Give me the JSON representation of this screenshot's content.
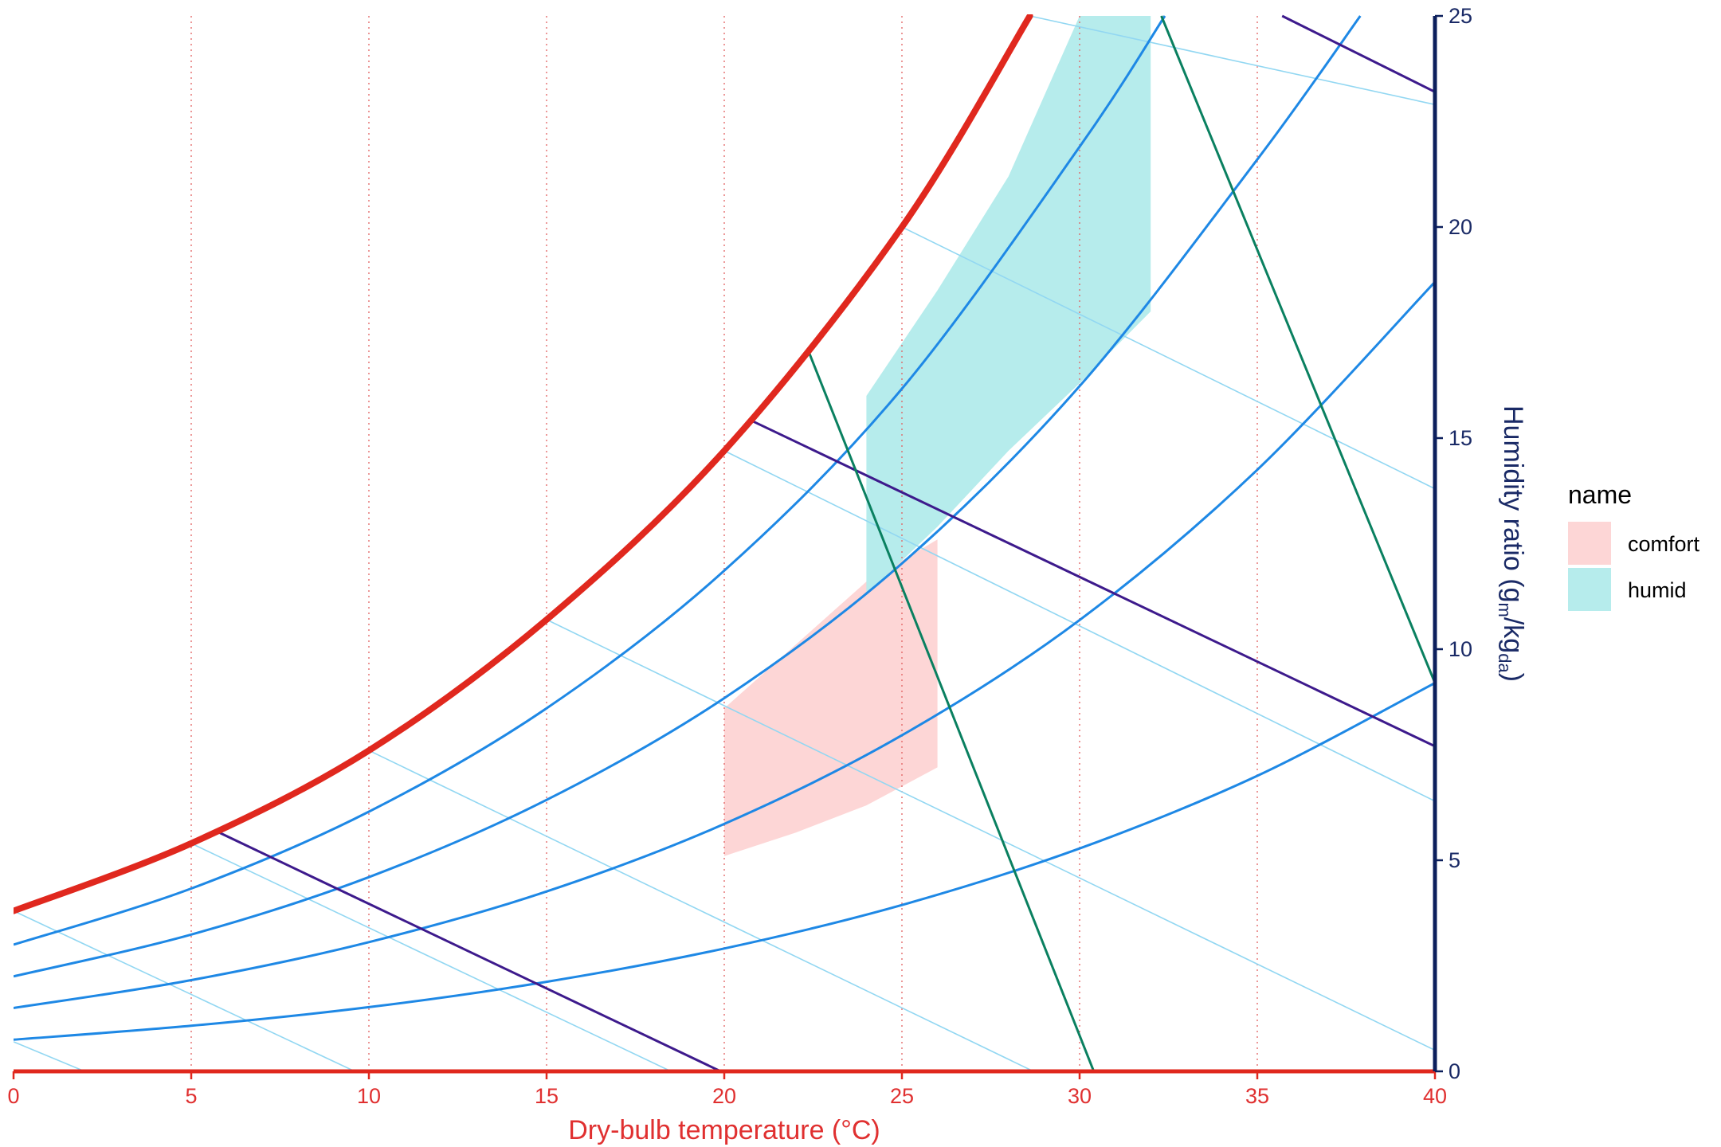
{
  "chart_data": {
    "type": "line",
    "xlabel": "Dry-bulb temperature (°C)",
    "ylabel": {
      "text_before": "Humidity ratio (g",
      "sub1": "m",
      "text_middle": "/kg",
      "sub2": "da",
      "text_after": ")"
    },
    "xlim": [
      0,
      40
    ],
    "ylim": [
      0,
      25
    ],
    "x_ticks": [
      0,
      5,
      10,
      15,
      20,
      25,
      30,
      35,
      40
    ],
    "y_ticks": [
      0,
      5,
      10,
      15,
      20,
      25
    ],
    "x_tick_labels": [
      "0",
      "5",
      "10",
      "15",
      "20",
      "25",
      "30",
      "35",
      "40"
    ],
    "y_tick_labels": [
      "0",
      "5",
      "10",
      "15",
      "20",
      "25"
    ],
    "y_axis_position": "right",
    "vertical_gridlines_at": [
      5,
      10,
      15,
      20,
      25,
      30,
      35
    ],
    "colors": {
      "saturation": "#e0281e",
      "rh": "#1e88e5",
      "wetbulb": "#92d7f2",
      "enthalpy": "#3d1a8c",
      "volume": "#0a8060",
      "comfort": "#fdd6d6",
      "humid": "#b6ecec",
      "y_axis": "#0c1f5c",
      "x_axis": "#e0281e",
      "grid": "#e26060"
    },
    "saturation_curve": {
      "x": [
        0,
        5,
        10,
        15,
        20,
        25,
        28.6
      ],
      "y": [
        3.8,
        5.4,
        7.6,
        10.7,
        14.7,
        20.0,
        25.0
      ]
    },
    "rh_curves": [
      {
        "rh": 0.2,
        "x": [
          0,
          5,
          10,
          15,
          20,
          25,
          30,
          35,
          40
        ],
        "y": [
          0.75,
          1.08,
          1.52,
          2.12,
          2.91,
          3.94,
          5.28,
          7.0,
          9.2
        ]
      },
      {
        "rh": 0.4,
        "x": [
          0,
          5,
          10,
          15,
          20,
          25,
          30,
          35,
          40
        ],
        "y": [
          1.5,
          2.16,
          3.06,
          4.26,
          5.86,
          7.96,
          10.69,
          14.25,
          18.7
        ]
      },
      {
        "rh": 0.6,
        "x": [
          0,
          5,
          10,
          15,
          20,
          25,
          30,
          35,
          37.9
        ],
        "y": [
          2.25,
          3.24,
          4.6,
          6.43,
          8.84,
          12.03,
          16.23,
          21.6,
          25.0
        ]
      },
      {
        "rh": 0.8,
        "x": [
          0,
          5,
          10,
          15,
          20,
          25,
          30,
          32.4
        ],
        "y": [
          3.0,
          4.33,
          6.15,
          8.6,
          11.86,
          16.17,
          21.9,
          25.0
        ]
      }
    ],
    "wetbulb_lines": [
      {
        "x": [
          0,
          2.0
        ],
        "y": [
          0.7,
          0
        ]
      },
      {
        "x": [
          0,
          9.6
        ],
        "y": [
          3.8,
          0
        ]
      },
      {
        "x": [
          5.0,
          18.5
        ],
        "y": [
          5.4,
          0
        ]
      },
      {
        "x": [
          10.0,
          28.7
        ],
        "y": [
          7.6,
          0
        ]
      },
      {
        "x": [
          15.0,
          40.0
        ],
        "y": [
          10.7,
          0.5
        ]
      },
      {
        "x": [
          20.0,
          40.0
        ],
        "y": [
          14.7,
          6.4
        ]
      },
      {
        "x": [
          25.0,
          40.0
        ],
        "y": [
          20.0,
          13.8
        ]
      },
      {
        "x": [
          28.6,
          40.0
        ],
        "y": [
          25.0,
          22.9
        ]
      }
    ],
    "enthalpy_lines": [
      {
        "x": [
          5.8,
          19.9
        ],
        "y": [
          5.65,
          0
        ]
      },
      {
        "x": [
          20.8,
          40.0
        ],
        "y": [
          15.4,
          7.7
        ]
      },
      {
        "x": [
          35.7,
          40.0
        ],
        "y": [
          25.0,
          23.2
        ]
      }
    ],
    "volume_lines": [
      {
        "x": [
          22.4,
          30.4
        ],
        "y": [
          17.0,
          0
        ]
      },
      {
        "x": [
          32.3,
          40.0
        ],
        "y": [
          25.0,
          9.2
        ]
      }
    ],
    "regions": [
      {
        "name": "comfort",
        "x": [
          20,
          22,
          24,
          26,
          26,
          24,
          22,
          20
        ],
        "y": [
          5.1,
          5.65,
          6.3,
          7.2,
          12.6,
          11.6,
          10.1,
          8.6
        ]
      },
      {
        "name": "humid",
        "x": [
          24,
          26,
          28,
          30,
          32,
          32,
          30,
          28,
          26,
          24
        ],
        "y": [
          11.3,
          12.9,
          14.7,
          16.3,
          18.0,
          25.0,
          25.0,
          21.2,
          18.5,
          16.0
        ]
      }
    ],
    "legend": {
      "title": "name",
      "position": "right",
      "entries": [
        {
          "label": "comfort",
          "color": "#fdd6d6"
        },
        {
          "label": "humid",
          "color": "#b6ecec"
        }
      ]
    }
  }
}
